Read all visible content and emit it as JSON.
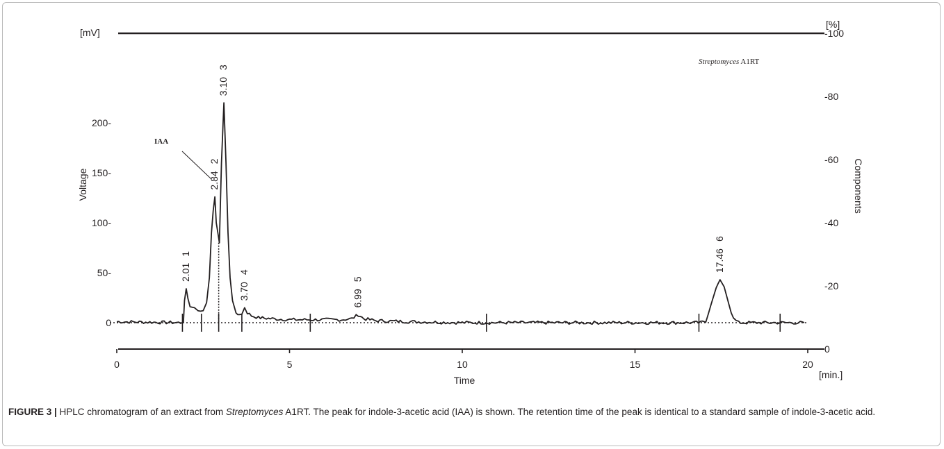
{
  "chart_data": {
    "type": "line",
    "xlabel": "Time",
    "xunit": "[min.]",
    "ylabel_left": "Voltage",
    "yunit_left": "[mV]",
    "ylabel_right": "Components",
    "yunit_right": "[%]",
    "xlim": [
      0,
      20
    ],
    "ylim_left": [
      0,
      230
    ],
    "ylim_right": [
      0,
      100
    ],
    "x_ticks": [
      0,
      5,
      10,
      15,
      20
    ],
    "y_ticks_left": [
      0,
      50,
      100,
      150,
      200
    ],
    "y_ticks_right": [
      0,
      20,
      40,
      60,
      80,
      100
    ],
    "sample_label_italic": "Streptomyces",
    "sample_label_rest": " A1RT",
    "annotation": "IAA",
    "peaks": [
      {
        "number": "1",
        "time": "2.01",
        "x": 2.01,
        "height": 34
      },
      {
        "number": "2",
        "time": "2.84",
        "x": 2.84,
        "height": 126
      },
      {
        "number": "3",
        "time": "3.10",
        "x": 3.1,
        "height": 220
      },
      {
        "number": "4",
        "time": "3.70",
        "x": 3.7,
        "height": 15
      },
      {
        "number": "5",
        "time": "6.99",
        "x": 6.99,
        "height": 8
      },
      {
        "number": "6",
        "time": "17.46",
        "x": 17.46,
        "height": 43
      }
    ],
    "signal": [
      [
        0,
        1
      ],
      [
        1.85,
        0
      ],
      [
        1.93,
        2
      ],
      [
        1.96,
        22
      ],
      [
        2.01,
        34
      ],
      [
        2.06,
        24
      ],
      [
        2.12,
        16
      ],
      [
        2.25,
        15
      ],
      [
        2.35,
        12
      ],
      [
        2.42,
        10
      ],
      [
        2.5,
        12
      ],
      [
        2.6,
        20
      ],
      [
        2.68,
        45
      ],
      [
        2.74,
        90
      ],
      [
        2.79,
        112
      ],
      [
        2.84,
        126
      ],
      [
        2.88,
        100
      ],
      [
        2.97,
        80
      ],
      [
        3.03,
        160
      ],
      [
        3.1,
        220
      ],
      [
        3.16,
        160
      ],
      [
        3.22,
        90
      ],
      [
        3.28,
        45
      ],
      [
        3.35,
        22
      ],
      [
        3.45,
        10
      ],
      [
        3.55,
        8
      ],
      [
        3.62,
        9
      ],
      [
        3.7,
        15
      ],
      [
        3.78,
        10
      ],
      [
        3.9,
        7
      ],
      [
        4.1,
        5
      ],
      [
        4.5,
        4
      ],
      [
        5.0,
        3
      ],
      [
        5.5,
        3
      ],
      [
        6.0,
        3
      ],
      [
        6.5,
        3
      ],
      [
        6.8,
        4
      ],
      [
        6.99,
        8
      ],
      [
        7.15,
        4
      ],
      [
        7.5,
        2
      ],
      [
        8.5,
        1
      ],
      [
        10.0,
        0
      ],
      [
        12.0,
        0
      ],
      [
        14.0,
        0
      ],
      [
        16.0,
        0
      ],
      [
        16.9,
        0
      ],
      [
        17.05,
        2
      ],
      [
        17.2,
        18
      ],
      [
        17.35,
        35
      ],
      [
        17.46,
        43
      ],
      [
        17.58,
        36
      ],
      [
        17.72,
        18
      ],
      [
        17.85,
        4
      ],
      [
        18.0,
        0
      ],
      [
        19.0,
        0
      ],
      [
        19.9,
        0
      ]
    ],
    "secondary_line_percent": 100,
    "baseline_markers": [
      1.9,
      2.45,
      2.95,
      3.62,
      5.6,
      10.7,
      16.85,
      19.2
    ]
  },
  "caption": {
    "label": "FIGURE 3 |",
    "text_a": " HPLC chromatogram of an extract from ",
    "text_italic": "Streptomyces",
    "text_b": " A1RT. The peak for indole-3-acetic acid (IAA) is shown. The retention time of the peak is identical to a standard sample of indole-3-acetic acid."
  }
}
